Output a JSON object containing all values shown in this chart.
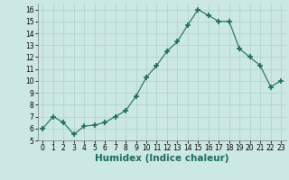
{
  "x": [
    0,
    1,
    2,
    3,
    4,
    5,
    6,
    7,
    8,
    9,
    10,
    11,
    12,
    13,
    14,
    15,
    16,
    17,
    18,
    19,
    20,
    21,
    22,
    23
  ],
  "y": [
    6.0,
    7.0,
    6.5,
    5.5,
    6.2,
    6.3,
    6.5,
    7.0,
    7.5,
    8.7,
    10.3,
    11.3,
    12.5,
    13.3,
    14.7,
    16.0,
    15.5,
    15.0,
    15.0,
    12.7,
    12.0,
    11.3,
    9.5,
    10.0
  ],
  "line_color": "#1a6b5e",
  "marker": "+",
  "marker_size": 4,
  "marker_lw": 1.2,
  "bg_color": "#cce8e4",
  "grid_color": "#b0d4ce",
  "xlabel": "Humidex (Indice chaleur)",
  "ylim": [
    5,
    16.5
  ],
  "xlim": [
    -0.5,
    23.5
  ],
  "yticks": [
    5,
    6,
    7,
    8,
    9,
    10,
    11,
    12,
    13,
    14,
    15,
    16
  ],
  "xticks": [
    0,
    1,
    2,
    3,
    4,
    5,
    6,
    7,
    8,
    9,
    10,
    11,
    12,
    13,
    14,
    15,
    16,
    17,
    18,
    19,
    20,
    21,
    22,
    23
  ],
  "tick_fontsize": 5.5,
  "xlabel_fontsize": 7.5,
  "line_width": 0.8
}
